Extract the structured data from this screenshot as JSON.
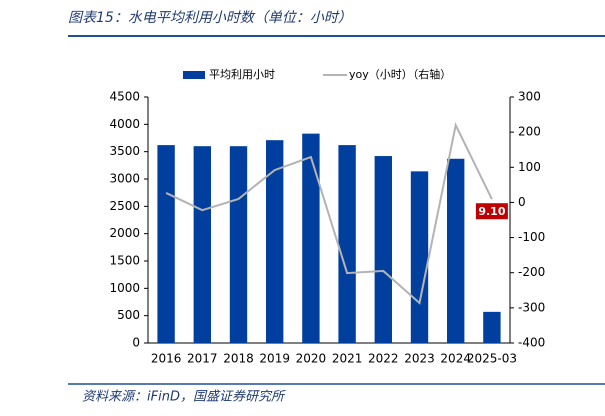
{
  "chart_data": {
    "type": "bar-line",
    "title": "图表15：水电平均利用小时数（单位：小时）",
    "source": "资料来源：iFinD，国盛证券研究所",
    "categories": [
      "2016",
      "2017",
      "2018",
      "2019",
      "2020",
      "2021",
      "2022",
      "2023",
      "2024",
      "2025-03"
    ],
    "series": [
      {
        "name": "平均利用小时",
        "color": "#003f9e",
        "values": [
          3620,
          3600,
          3600,
          3710,
          3830,
          3620,
          3420,
          3140,
          3370,
          570
        ]
      },
      {
        "name": "yoy（小时）（右轴）",
        "color": "#b3b3b3",
        "axis": "y2",
        "values": [
          27,
          -22,
          10,
          92,
          129,
          -201,
          -195,
          -286,
          220,
          9.1
        ],
        "value_labels": [
          null,
          null,
          null,
          null,
          null,
          null,
          null,
          null,
          null,
          "9.10"
        ]
      }
    ],
    "ylim": [
      0,
      4500
    ],
    "yticks": [
      0,
      500,
      1000,
      1500,
      2000,
      2500,
      3000,
      3500,
      4000,
      4500
    ],
    "y2lim": [
      -400,
      300
    ],
    "y2ticks": [
      -400,
      -300,
      -200,
      -100,
      0,
      100,
      200,
      300
    ],
    "grid": false,
    "legend": "top"
  }
}
